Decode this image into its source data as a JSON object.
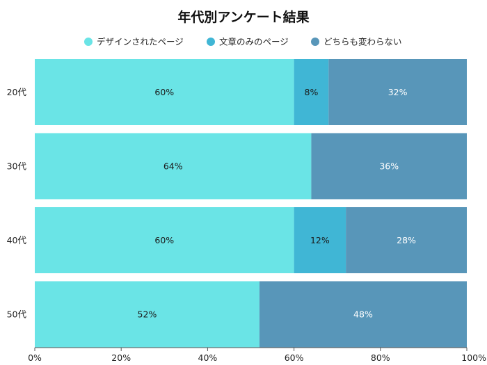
{
  "chart_data": {
    "type": "bar",
    "orientation": "horizontal",
    "stacked": true,
    "title": "年代別アンケート結果",
    "categories": [
      "20代",
      "30代",
      "40代",
      "50代"
    ],
    "series": [
      {
        "name": "デザインされたページ",
        "values": [
          60,
          64,
          60,
          52
        ],
        "color": "#6ae4e6"
      },
      {
        "name": "文章のみのページ",
        "values": [
          8,
          0,
          12,
          0
        ],
        "color": "#40b6d5"
      },
      {
        "name": "どちらも変わらない",
        "values": [
          32,
          36,
          28,
          48
        ],
        "color": "#5896b9"
      }
    ],
    "xlim": [
      0,
      100
    ],
    "x_ticks": [
      "0%",
      "20%",
      "40%",
      "60%",
      "80%",
      "100%"
    ],
    "value_labels": [
      [
        "60%",
        "8%",
        "32%"
      ],
      [
        "64%",
        "",
        "36%"
      ],
      [
        "60%",
        "12%",
        "28%"
      ],
      [
        "52%",
        "",
        "48%"
      ]
    ],
    "legend_position": "top",
    "grid": false
  }
}
